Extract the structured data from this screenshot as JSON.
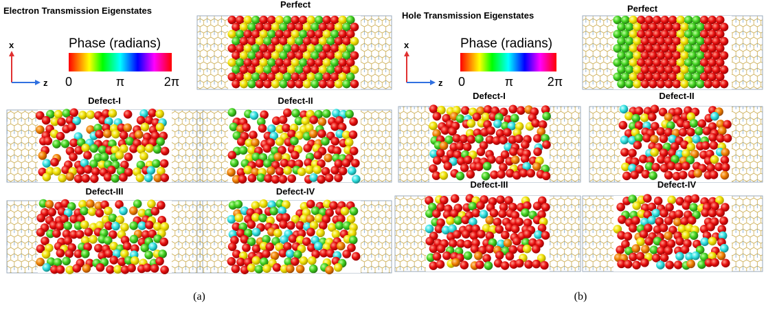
{
  "panels": [
    {
      "title": "Electron Transmission Eigenstates",
      "colorbar": {
        "label": "Phase (radians)",
        "ticks": [
          "0",
          "π",
          "2π"
        ]
      },
      "axes": {
        "vertical": "x",
        "horizontal": "z"
      },
      "images": [
        {
          "label": "Perfect"
        },
        {
          "label": "Defect-I"
        },
        {
          "label": "Defect-II"
        },
        {
          "label": "Defect-III"
        },
        {
          "label": "Defect-IV"
        }
      ],
      "caption": "(a)"
    },
    {
      "title": "Hole Transmission Eigenstates",
      "colorbar": {
        "label": "Phase (radians)",
        "ticks": [
          "0",
          "π",
          "2π"
        ]
      },
      "axes": {
        "vertical": "x",
        "horizontal": "z"
      },
      "images": [
        {
          "label": "Perfect"
        },
        {
          "label": "Defect-I"
        },
        {
          "label": "Defect-II"
        },
        {
          "label": "Defect-III"
        },
        {
          "label": "Defect-IV"
        }
      ],
      "caption": "(b)"
    }
  ]
}
